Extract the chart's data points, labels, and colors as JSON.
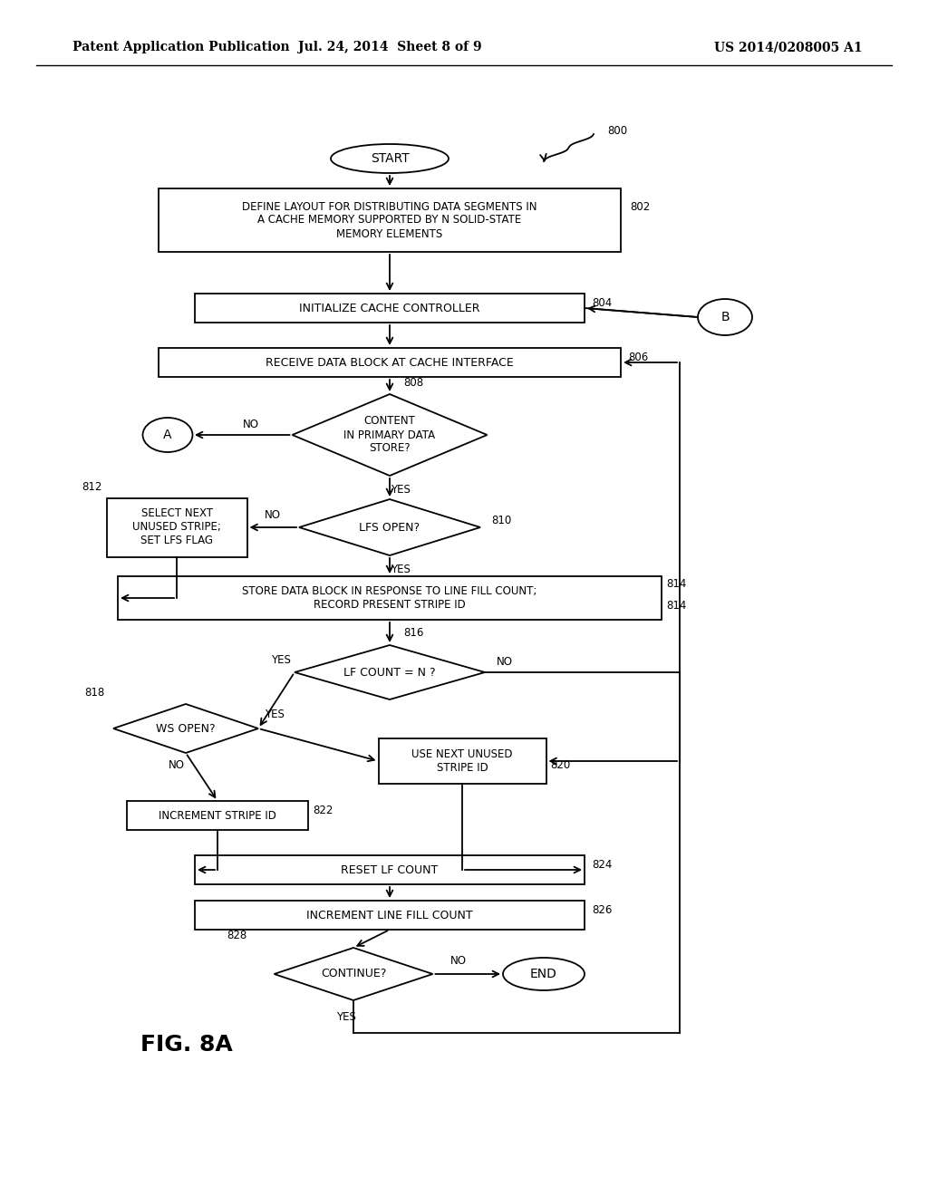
{
  "bg_color": "#ffffff",
  "header_left": "Patent Application Publication",
  "header_mid": "Jul. 24, 2014  Sheet 8 of 9",
  "header_right": "US 2014/0208005 A1",
  "fig_label": "FIG. 8A"
}
